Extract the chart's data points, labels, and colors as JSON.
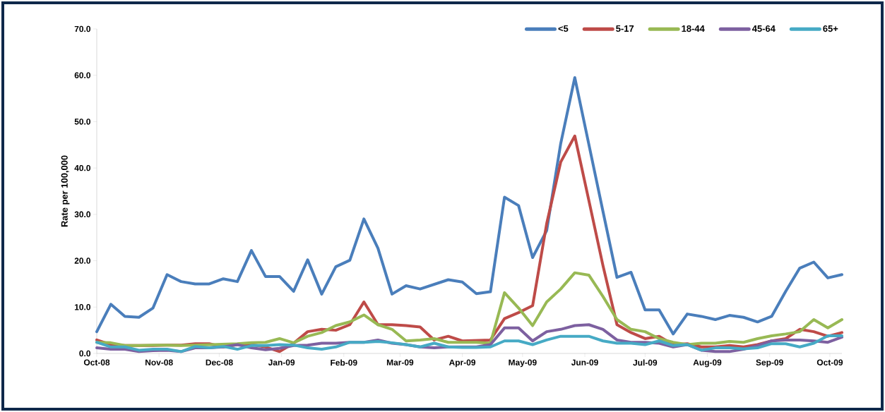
{
  "chart_data": {
    "type": "line",
    "ylabel": "Rate per 100,000",
    "x": [
      "2008-10-01",
      "2008-10-08",
      "2008-10-15",
      "2008-10-22",
      "2008-10-29",
      "2008-11-05",
      "2008-11-12",
      "2008-11-19",
      "2008-11-26",
      "2008-12-03",
      "2008-12-10",
      "2008-12-17",
      "2008-12-24",
      "2008-12-31",
      "2009-01-07",
      "2009-01-14",
      "2009-01-21",
      "2009-01-28",
      "2009-02-04",
      "2009-02-11",
      "2009-02-18",
      "2009-02-25",
      "2009-03-04",
      "2009-03-11",
      "2009-03-18",
      "2009-03-25",
      "2009-04-01",
      "2009-04-08",
      "2009-04-15",
      "2009-04-22",
      "2009-04-29",
      "2009-05-06",
      "2009-05-13",
      "2009-05-20",
      "2009-05-27",
      "2009-06-03",
      "2009-06-10",
      "2009-06-17",
      "2009-06-24",
      "2009-07-01",
      "2009-07-08",
      "2009-07-15",
      "2009-07-22",
      "2009-07-29",
      "2009-08-05",
      "2009-08-12",
      "2009-08-19",
      "2009-08-26",
      "2009-09-02",
      "2009-09-09",
      "2009-09-16",
      "2009-09-23",
      "2009-09-30",
      "2009-10-07"
    ],
    "series": [
      {
        "name": "<5",
        "color": "#4a7ebb",
        "values": [
          4.7,
          10.6,
          8.0,
          7.8,
          9.8,
          17.0,
          15.5,
          15.0,
          15.0,
          16.1,
          15.5,
          22.2,
          16.6,
          16.6,
          13.4,
          20.2,
          12.8,
          18.7,
          20.1,
          29.0,
          22.7,
          12.8,
          14.6,
          13.9,
          14.9,
          15.9,
          15.4,
          12.9,
          13.3,
          33.7,
          31.9,
          20.7,
          26.5,
          45.3,
          59.5,
          45.1,
          30.7,
          16.4,
          17.5,
          9.4,
          9.4,
          4.2,
          8.5,
          8.0,
          7.3,
          8.2,
          7.8,
          6.8,
          8.0,
          13.4,
          18.4,
          19.7,
          16.3,
          17.0
        ]
      },
      {
        "name": "5-17",
        "color": "#be4b48",
        "values": [
          2.9,
          1.9,
          1.7,
          1.7,
          1.7,
          1.8,
          1.8,
          2.1,
          2.1,
          1.4,
          1.9,
          1.9,
          1.4,
          0.4,
          2.2,
          4.7,
          5.2,
          5.0,
          6.2,
          11.1,
          6.2,
          6.2,
          6.0,
          5.7,
          2.9,
          3.7,
          2.7,
          2.8,
          2.9,
          7.5,
          8.8,
          10.3,
          28.0,
          41.3,
          46.9,
          33.0,
          19.0,
          6.2,
          4.5,
          3.2,
          3.7,
          1.9,
          2.1,
          1.4,
          1.4,
          1.7,
          1.4,
          1.9,
          2.7,
          3.2,
          5.2,
          4.7,
          3.7,
          4.5
        ]
      },
      {
        "name": "18-44",
        "color": "#98b954",
        "values": [
          2.4,
          2.3,
          1.7,
          1.7,
          1.8,
          1.8,
          1.7,
          1.8,
          1.9,
          2.0,
          2.1,
          2.3,
          2.4,
          3.2,
          2.3,
          3.7,
          4.5,
          6.0,
          6.8,
          8.3,
          6.2,
          5.2,
          2.7,
          2.9,
          3.2,
          2.4,
          2.4,
          2.4,
          2.2,
          13.1,
          9.8,
          6.0,
          11.1,
          13.9,
          17.4,
          16.9,
          12.3,
          7.3,
          5.2,
          4.7,
          3.2,
          2.4,
          1.9,
          2.2,
          2.2,
          2.6,
          2.4,
          3.2,
          3.8,
          4.2,
          4.7,
          7.3,
          5.5,
          7.3
        ]
      },
      {
        "name": "45-64",
        "color": "#7d60a0",
        "values": [
          1.2,
          0.9,
          0.9,
          0.4,
          0.6,
          0.7,
          0.4,
          1.2,
          1.2,
          1.4,
          1.9,
          1.2,
          0.8,
          1.1,
          1.7,
          1.8,
          2.2,
          2.2,
          2.4,
          2.4,
          2.9,
          2.2,
          1.9,
          1.4,
          1.2,
          1.4,
          1.4,
          1.4,
          1.9,
          5.5,
          5.5,
          2.7,
          4.7,
          5.2,
          6.0,
          6.2,
          5.2,
          2.9,
          2.4,
          2.4,
          2.2,
          1.4,
          1.9,
          0.7,
          0.4,
          0.4,
          0.9,
          1.7,
          2.7,
          2.9,
          2.9,
          2.7,
          2.4,
          3.5
        ]
      },
      {
        "name": "65+",
        "color": "#46aac5",
        "values": [
          2.4,
          1.4,
          1.4,
          0.7,
          0.9,
          0.9,
          0.4,
          1.5,
          1.2,
          1.5,
          0.9,
          1.7,
          1.7,
          1.9,
          1.8,
          1.2,
          0.9,
          1.4,
          2.4,
          2.4,
          2.6,
          2.3,
          1.9,
          1.4,
          2.2,
          1.4,
          1.3,
          1.3,
          1.4,
          2.7,
          2.7,
          1.9,
          2.9,
          3.7,
          3.7,
          3.7,
          2.7,
          2.2,
          2.2,
          1.9,
          2.7,
          1.7,
          1.9,
          0.7,
          1.2,
          1.2,
          1.0,
          1.2,
          2.1,
          2.1,
          1.4,
          2.2,
          3.8,
          3.8
        ]
      }
    ],
    "xlim": [
      "2008-10-01",
      "2009-10-07"
    ],
    "xticks": [
      {
        "value": "2008-10-01",
        "label": "Oct-08"
      },
      {
        "value": "2008-11-01",
        "label": "Nov-08"
      },
      {
        "value": "2008-12-01",
        "label": "Dec-08"
      },
      {
        "value": "2009-01-01",
        "label": "Jan-09"
      },
      {
        "value": "2009-02-01",
        "label": "Feb-09"
      },
      {
        "value": "2009-03-01",
        "label": "Mar-09"
      },
      {
        "value": "2009-04-01",
        "label": "Apr-09"
      },
      {
        "value": "2009-05-01",
        "label": "May-09"
      },
      {
        "value": "2009-06-01",
        "label": "Jun-09"
      },
      {
        "value": "2009-07-01",
        "label": "Jul-09"
      },
      {
        "value": "2009-08-01",
        "label": "Aug-09"
      },
      {
        "value": "2009-09-01",
        "label": "Sep-09"
      },
      {
        "value": "2009-10-01",
        "label": "Oct-09"
      }
    ],
    "ylim": [
      0,
      70
    ],
    "yticks": [
      {
        "value": 0,
        "label": "0.0"
      },
      {
        "value": 10,
        "label": "10.0"
      },
      {
        "value": 20,
        "label": "20.0"
      },
      {
        "value": 30,
        "label": "30.0"
      },
      {
        "value": 40,
        "label": "40.0"
      },
      {
        "value": 50,
        "label": "50.0"
      },
      {
        "value": 60,
        "label": "60.0"
      },
      {
        "value": 70,
        "label": "70.0"
      }
    ],
    "grid": false,
    "legend": "top right",
    "marker": "none",
    "line_style": "solid"
  }
}
